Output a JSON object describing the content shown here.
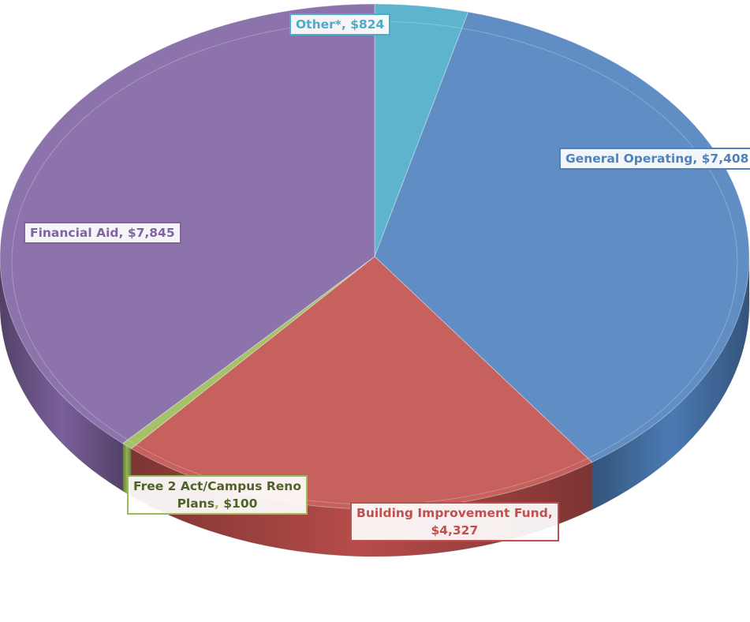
{
  "chart_data": {
    "type": "pie",
    "style": "3d",
    "categories": [
      "Other*",
      "General Operating",
      "Building Improvement Fund",
      "Free 2 Act/Campus Reno Plans",
      "Financial Aid"
    ],
    "values": [
      824,
      7408,
      4327,
      100,
      7845
    ],
    "colors": [
      "#4bacc6",
      "#4f81bd",
      "#c0504d",
      "#9bbb59",
      "#8064a2"
    ],
    "labels": [
      {
        "name": "Other*",
        "sep": ", ",
        "value": "$824"
      },
      {
        "name": "General Operating",
        "sep": ", ",
        "value": "$7,408"
      },
      {
        "name": "Building Improvement Fund,",
        "sep": "",
        "value": "$4,327"
      },
      {
        "name": "Free 2 Act/Campus Reno Plans",
        "sep": ", ",
        "value": "$100"
      },
      {
        "name": "Financial Aid",
        "sep": ", ",
        "value": "$7,845"
      }
    ],
    "title": "",
    "legend": "none"
  }
}
